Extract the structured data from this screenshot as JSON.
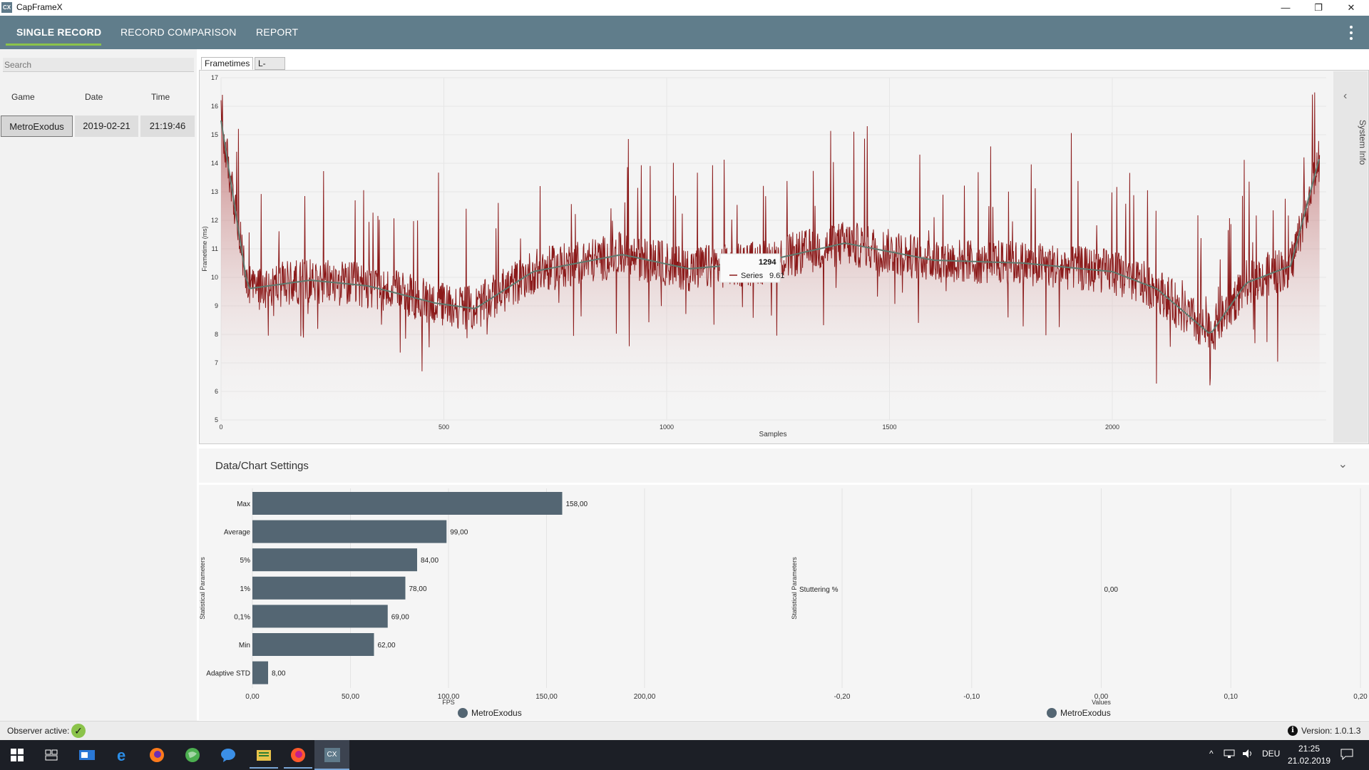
{
  "window": {
    "title": "CapFrameX",
    "icon_text": "CX",
    "minimize": "—",
    "restore": "❐",
    "close": "✕"
  },
  "nav": {
    "tabs": [
      "SINGLE RECORD",
      "RECORD COMPARISON",
      "REPORT"
    ],
    "active_index": 0,
    "menu_icon": "⋮"
  },
  "left_panel": {
    "search_placeholder": "Search",
    "columns": [
      "Game",
      "Date",
      "Time"
    ],
    "rows": [
      {
        "game": "MetroExodus",
        "date": "2019-02-21",
        "time": "21:19:46"
      }
    ]
  },
  "chart_tabs": [
    "Frametimes",
    "L-shape"
  ],
  "system_info": {
    "label": "System Info",
    "chevron": "‹"
  },
  "settings": {
    "label": "Data/Chart Settings",
    "chevron": "⌄"
  },
  "tooltip": {
    "x": "1294",
    "series_label": "Series",
    "value": "9.61"
  },
  "status": {
    "observer_label": "Observer active:",
    "observer_icon": "✓",
    "version": "Version: 1.0.1.3",
    "info_icon": "i"
  },
  "taskbar": {
    "time": "21:25",
    "date": "21.02.2019",
    "lang": "DEU",
    "apps": [
      "windows-start",
      "task-view",
      "outlook",
      "edge",
      "firefox",
      "globe",
      "messenger",
      "files",
      "firefox-dev",
      "capframex"
    ]
  },
  "colors": {
    "nav": "#607d8b",
    "accent": "#8bc34a",
    "frametime": "#8b1a1a",
    "bar": "#546673"
  },
  "chart_data": [
    {
      "type": "line",
      "ylabel": "Frametime (ms)",
      "xlabel": "Samples",
      "ylim": [
        5,
        17
      ],
      "xlim": [
        0,
        2480
      ],
      "yticks": [
        5,
        6,
        7,
        8,
        9,
        10,
        11,
        12,
        13,
        14,
        15,
        16,
        17
      ],
      "xticks": [
        0,
        500,
        1000,
        1500,
        2000
      ],
      "grid": true,
      "series": [
        {
          "name": "Series",
          "description_points": [
            [
              0,
              15.5
            ],
            [
              60,
              9.6
            ],
            [
              200,
              9.9
            ],
            [
              330,
              9.7
            ],
            [
              480,
              9.1
            ],
            [
              570,
              8.9
            ],
            [
              700,
              10.2
            ],
            [
              900,
              10.8
            ],
            [
              1050,
              10.3
            ],
            [
              1200,
              10.5
            ],
            [
              1400,
              11.2
            ],
            [
              1600,
              10.6
            ],
            [
              1800,
              10.5
            ],
            [
              2000,
              10.2
            ],
            [
              2100,
              9.6
            ],
            [
              2220,
              8.0
            ],
            [
              2300,
              9.8
            ],
            [
              2400,
              10.4
            ],
            [
              2465,
              14.2
            ]
          ]
        }
      ]
    },
    {
      "type": "bar",
      "orientation": "horizontal",
      "ylabel": "Statistical Parameters",
      "xlabel": "FPS",
      "categories": [
        "Max",
        "Average",
        "5%",
        "1%",
        "0,1%",
        "Min",
        "Adaptive STD"
      ],
      "values": [
        158.0,
        99.0,
        84.0,
        78.0,
        69.0,
        62.0,
        8.0
      ],
      "value_labels": [
        "158,00",
        "99,00",
        "84,00",
        "78,00",
        "69,00",
        "62,00",
        "8,00"
      ],
      "xlim": [
        0,
        200
      ],
      "xticks": [
        "0,00",
        "50,00",
        "100,00",
        "150,00",
        "200,00"
      ],
      "legend": [
        "MetroExodus"
      ]
    },
    {
      "type": "bar",
      "orientation": "horizontal",
      "ylabel": "Statistical Parameters",
      "xlabel": "Values",
      "categories": [
        "Stuttering %"
      ],
      "values": [
        0.0
      ],
      "value_labels": [
        "0,00"
      ],
      "xlim": [
        -0.2,
        0.2
      ],
      "xticks": [
        "-0,20",
        "-0,10",
        "0,00",
        "0,10",
        "0,20"
      ],
      "legend": [
        "MetroExodus"
      ]
    }
  ]
}
